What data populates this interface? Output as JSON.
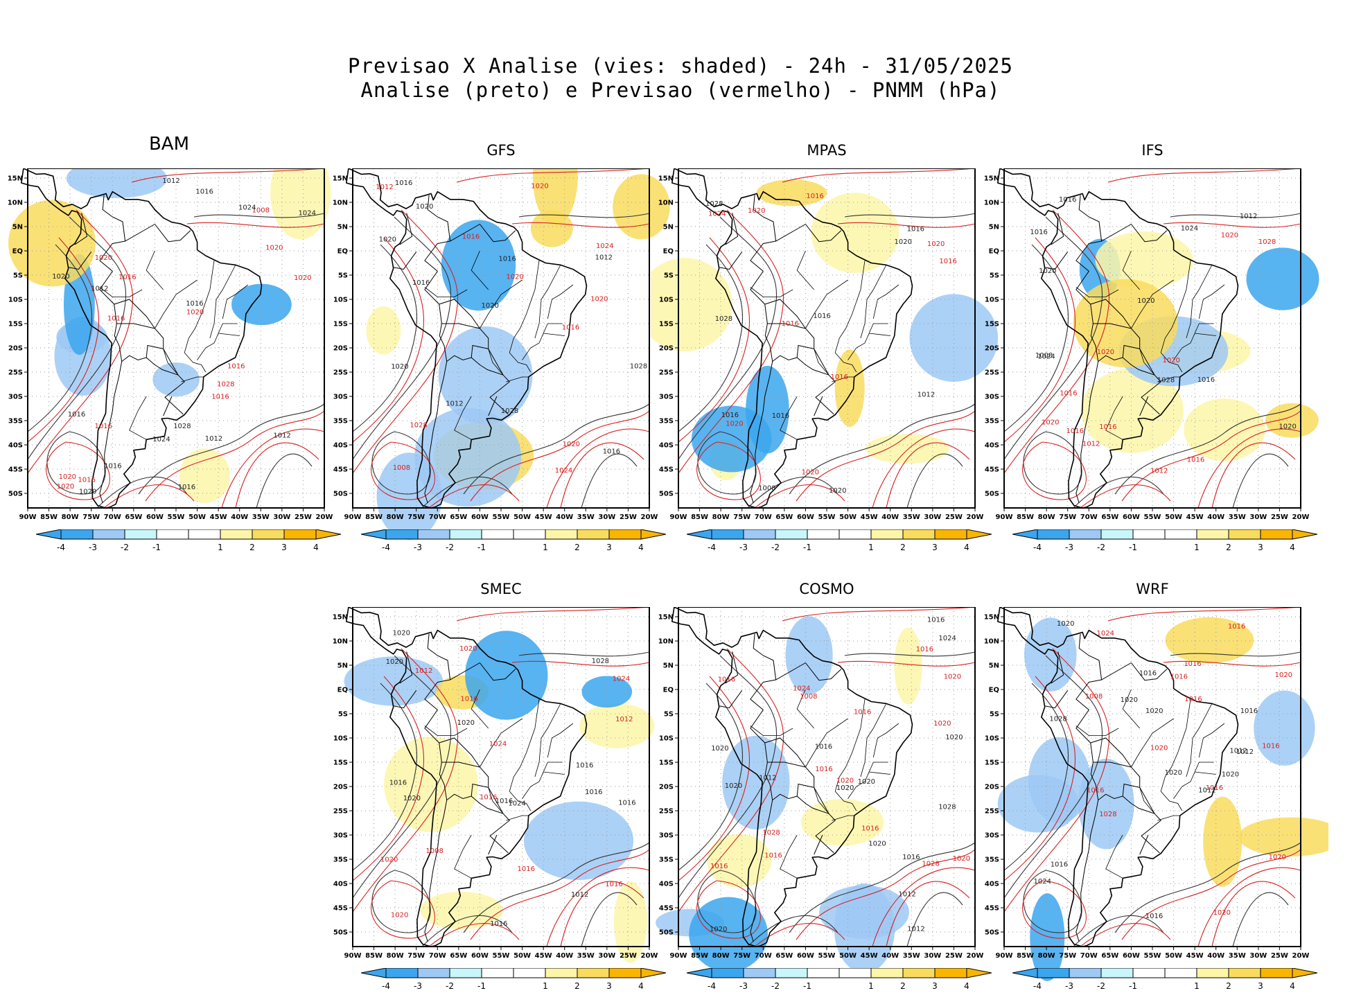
{
  "figure": {
    "title_line1": "Previsao X Analise (vies: shaded) - 24h - 31/05/2025",
    "title_line2": "Analise (preto) e Previsao (vermelho) - PNMM (hPa)"
  },
  "colors": {
    "analysis_contour": "#000000",
    "forecast_contour": "#d62020",
    "bias_colors": [
      "#3ba6ee",
      "#9ec9f5",
      "#c8f6fa",
      "#ffffff",
      "#ffffff",
      "#fdf6a8",
      "#f9dc5e",
      "#f9b500"
    ]
  },
  "lat_labels": [
    "15N",
    "10N",
    "5N",
    "EQ",
    "5S",
    "10S",
    "15S",
    "20S",
    "25S",
    "30S",
    "35S",
    "40S",
    "45S",
    "50S"
  ],
  "lon_labels": [
    "90W",
    "85W",
    "80W",
    "75W",
    "70W",
    "65W",
    "60W",
    "55W",
    "50W",
    "45W",
    "40W",
    "35W",
    "30W",
    "25W",
    "20W"
  ],
  "colorbar_labels": [
    "-4",
    "-3",
    "-2",
    "-1",
    "1",
    "2",
    "3",
    "4"
  ],
  "panels": [
    {
      "name": "BAM",
      "labels": [
        "1012",
        "1016",
        "1016",
        "1016",
        "1012",
        "1016",
        "1016",
        "1020",
        "1016",
        "1020",
        "1024",
        "1020",
        "1016",
        "1020",
        "1024",
        "1028",
        "1012",
        "1016",
        "1020",
        "1020",
        "1028",
        "1008",
        "1012",
        "1016",
        "1020",
        "1020",
        "1024",
        "1016",
        "1016"
      ]
    },
    {
      "name": "GFS",
      "labels": [
        "1012",
        "1012",
        "1016",
        "1016",
        "1016",
        "1020",
        "1016",
        "1016",
        "1020",
        "1020",
        "1016",
        "1020",
        "1020",
        "1024",
        "1028",
        "1020",
        "1020",
        "1028",
        "1012",
        "1008",
        "1028",
        "1024",
        "1020"
      ]
    },
    {
      "name": "MPAS",
      "labels": [
        "1012",
        "1016",
        "1016",
        "1016",
        "1016",
        "1020",
        "1016",
        "1016",
        "1020",
        "1020",
        "1020",
        "1016",
        "1028",
        "1020",
        "1028",
        "1024",
        "1008",
        "1020",
        "1016"
      ]
    },
    {
      "name": "IFS",
      "labels": [
        "1012",
        "1016",
        "1016",
        "1012",
        "1016",
        "1020",
        "1016",
        "1016",
        "1020",
        "1020",
        "1020",
        "1016",
        "1020",
        "1028",
        "1024",
        "1012",
        "1008",
        "1020",
        "1024",
        "1016",
        "1028",
        "1020"
      ]
    },
    {
      "name": "SMEC",
      "labels": [
        "1016",
        "1012",
        "1016",
        "1016",
        "1016",
        "1012",
        "1016",
        "1020",
        "1016",
        "1016",
        "1020",
        "1020",
        "1020",
        "1024",
        "1020",
        "1016",
        "1028",
        "1020",
        "1012",
        "1008",
        "1024",
        "1024",
        "1020",
        "1016",
        "1016"
      ]
    },
    {
      "name": "COSMO",
      "labels": [
        "1012",
        "1016",
        "1016",
        "1016",
        "1012",
        "1016",
        "1016",
        "1016",
        "1020",
        "1020",
        "1016",
        "1020",
        "1020",
        "1020",
        "1020",
        "1016",
        "1020",
        "1020",
        "1028",
        "1028",
        "1020",
        "1024",
        "1020",
        "1016",
        "1012",
        "1008",
        "1024",
        "1028",
        "1020",
        "1016"
      ]
    },
    {
      "name": "WRF",
      "labels": [
        "1012",
        "1016",
        "1016",
        "1016",
        "1016",
        "1016",
        "1012",
        "1016",
        "1016",
        "1020",
        "1016",
        "1020",
        "1024",
        "1020",
        "1020",
        "1016",
        "1020",
        "1020",
        "1028",
        "1028",
        "1020",
        "1024",
        "1020",
        "1016",
        "1012",
        "1008",
        "1020",
        "1016"
      ]
    }
  ]
}
